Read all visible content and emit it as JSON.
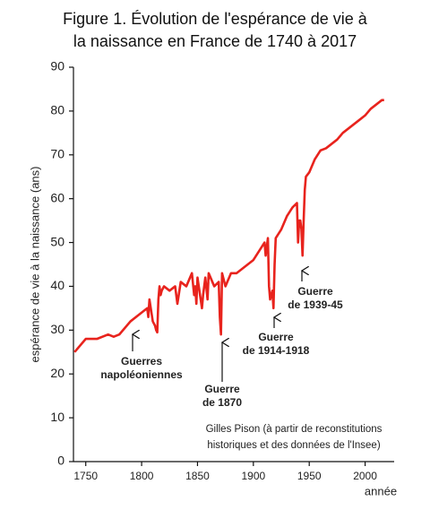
{
  "chart_data": {
    "type": "line",
    "title": [
      "Figure 1. Évolution de l'espérance de vie à",
      "la naissance en France de 1740 à 2017"
    ],
    "ylabel": "espérance de vie à la naissance (ans)",
    "xlabel": "année",
    "x": [
      1740,
      1750,
      1760,
      1770,
      1775,
      1780,
      1790,
      1800,
      1805,
      1806,
      1807,
      1810,
      1812,
      1813,
      1814,
      1815,
      1816,
      1817,
      1818,
      1820,
      1825,
      1830,
      1832,
      1835,
      1840,
      1845,
      1847,
      1848,
      1849,
      1850,
      1854,
      1855,
      1857,
      1859,
      1860,
      1865,
      1869,
      1870,
      1871,
      1872,
      1875,
      1880,
      1885,
      1890,
      1895,
      1900,
      1905,
      1910,
      1911,
      1913,
      1914,
      1915,
      1916,
      1917,
      1918,
      1919,
      1920,
      1925,
      1930,
      1935,
      1939,
      1940,
      1941,
      1942,
      1943,
      1944,
      1945,
      1946,
      1947,
      1950,
      1955,
      1960,
      1965,
      1970,
      1975,
      1980,
      1985,
      1990,
      1995,
      2000,
      2005,
      2010,
      2015,
      2017
    ],
    "values": [
      25,
      28,
      28,
      29,
      28.5,
      29,
      32,
      34,
      35,
      33,
      37,
      32,
      31,
      30,
      29.5,
      37,
      40,
      38,
      39,
      40,
      39,
      40,
      36,
      41,
      40,
      43,
      38,
      40,
      36,
      42,
      35,
      38,
      42,
      37,
      43,
      40,
      41,
      33,
      29,
      43,
      40,
      43,
      43,
      44,
      45,
      46,
      48,
      50,
      47,
      51,
      40,
      37,
      38,
      39,
      35,
      45,
      51,
      53,
      56,
      58,
      59,
      50,
      55,
      55,
      53,
      47,
      55,
      62,
      65,
      66,
      69,
      71,
      71.5,
      72.5,
      73.5,
      75,
      76,
      77,
      78,
      79,
      80.5,
      81.5,
      82.5,
      82.5
    ],
    "color": "#e8231d",
    "xlim": [
      1739,
      2026
    ],
    "ylim": [
      0,
      90
    ],
    "xticks": [
      1750,
      1800,
      1850,
      1900,
      1950,
      2000
    ],
    "yticks": [
      0,
      10,
      20,
      30,
      40,
      50,
      60,
      70,
      80,
      90
    ],
    "annotations": [
      [
        "Guerres",
        "napoléoniennes"
      ],
      [
        "Guerre",
        "de 1870"
      ],
      [
        "Guerre",
        "de 1914-1918"
      ],
      [
        "Guerre",
        "de 1939-45"
      ]
    ],
    "source": [
      "Gilles Pison (à partir de reconstitutions",
      "historiques et des données de l'Insee)"
    ]
  }
}
